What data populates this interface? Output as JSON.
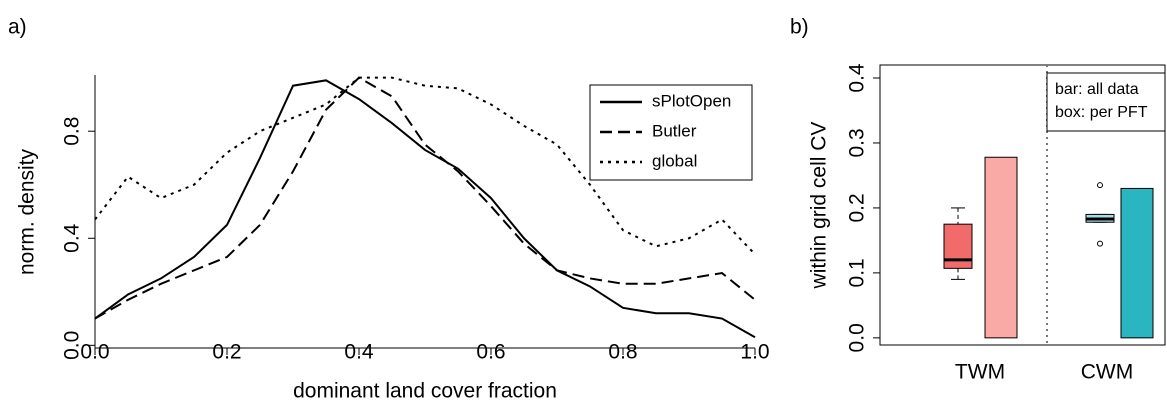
{
  "chart_data": [
    {
      "type": "line",
      "label": "a)",
      "xlabel": "dominant land cover fraction",
      "ylabel": "norm. density",
      "x": [
        0,
        0.05,
        0.1,
        0.15,
        0.2,
        0.25,
        0.3,
        0.35,
        0.4,
        0.45,
        0.5,
        0.55,
        0.6,
        0.65,
        0.7,
        0.75,
        0.8,
        0.85,
        0.9,
        0.95,
        1.0
      ],
      "series": [
        {
          "name": "sPlotOpen",
          "color": "#000000",
          "dash": "solid",
          "values": [
            0.1,
            0.19,
            0.25,
            0.33,
            0.45,
            0.7,
            0.97,
            0.99,
            0.92,
            0.83,
            0.73,
            0.66,
            0.55,
            0.4,
            0.28,
            0.22,
            0.14,
            0.12,
            0.12,
            0.1,
            0.03
          ]
        },
        {
          "name": "Butler",
          "color": "#000000",
          "dash": "dashed",
          "values": [
            0.1,
            0.17,
            0.23,
            0.28,
            0.33,
            0.45,
            0.65,
            0.88,
            1.0,
            0.93,
            0.75,
            0.65,
            0.52,
            0.38,
            0.28,
            0.25,
            0.23,
            0.23,
            0.25,
            0.27,
            0.17
          ]
        },
        {
          "name": "global",
          "color": "#000000",
          "dash": "dotted",
          "values": [
            0.47,
            0.63,
            0.55,
            0.6,
            0.72,
            0.8,
            0.85,
            0.9,
            1.0,
            1.0,
            0.97,
            0.96,
            0.9,
            0.82,
            0.75,
            0.6,
            0.43,
            0.37,
            0.4,
            0.47,
            0.34
          ]
        }
      ],
      "xlim": [
        0,
        1
      ],
      "ylim": [
        -0.01,
        1.01
      ],
      "xticks": [
        {
          "value": 0,
          "label": "0.0"
        },
        {
          "value": 0.2,
          "label": "0.2"
        },
        {
          "value": 0.4,
          "label": "0.4"
        },
        {
          "value": 0.6,
          "label": "0.6"
        },
        {
          "value": 0.8,
          "label": "0.8"
        },
        {
          "value": 1,
          "label": "1.0"
        }
      ],
      "yticks": [
        {
          "value": 0,
          "label": "0.0"
        },
        {
          "value": 0.4,
          "label": "0.4"
        },
        {
          "value": 0.8,
          "label": "0.8"
        }
      ],
      "legend": "top-right"
    },
    {
      "type": "box_bar",
      "label": "b)",
      "ylabel": "within grid cell CV",
      "categories": [
        "TWM",
        "CWM"
      ],
      "boxes": [
        {
          "min": 0.09,
          "q1": 0.107,
          "median": 0.12,
          "q3": 0.175,
          "max": 0.2,
          "outliers": [],
          "color": "#f26b6b"
        },
        {
          "min": 0.178,
          "q1": 0.178,
          "median": 0.183,
          "q3": 0.19,
          "max": 0.19,
          "outliers": [
            0.235,
            0.145
          ],
          "color": "#a8dbe8"
        }
      ],
      "bars": {
        "values": [
          0.278,
          0.23
        ],
        "colors": [
          "#f9aaa6",
          "#2bb5c0"
        ]
      },
      "ylim": [
        -0.011,
        0.42
      ],
      "yticks": [
        {
          "value": 0,
          "label": "0.0"
        },
        {
          "value": 0.1,
          "label": "0.1"
        },
        {
          "value": 0.2,
          "label": "0.2"
        },
        {
          "value": 0.3,
          "label": "0.3"
        },
        {
          "value": 0.4,
          "label": "0.4"
        }
      ],
      "legend": [
        "bar: all data",
        "box: per PFT"
      ]
    }
  ]
}
